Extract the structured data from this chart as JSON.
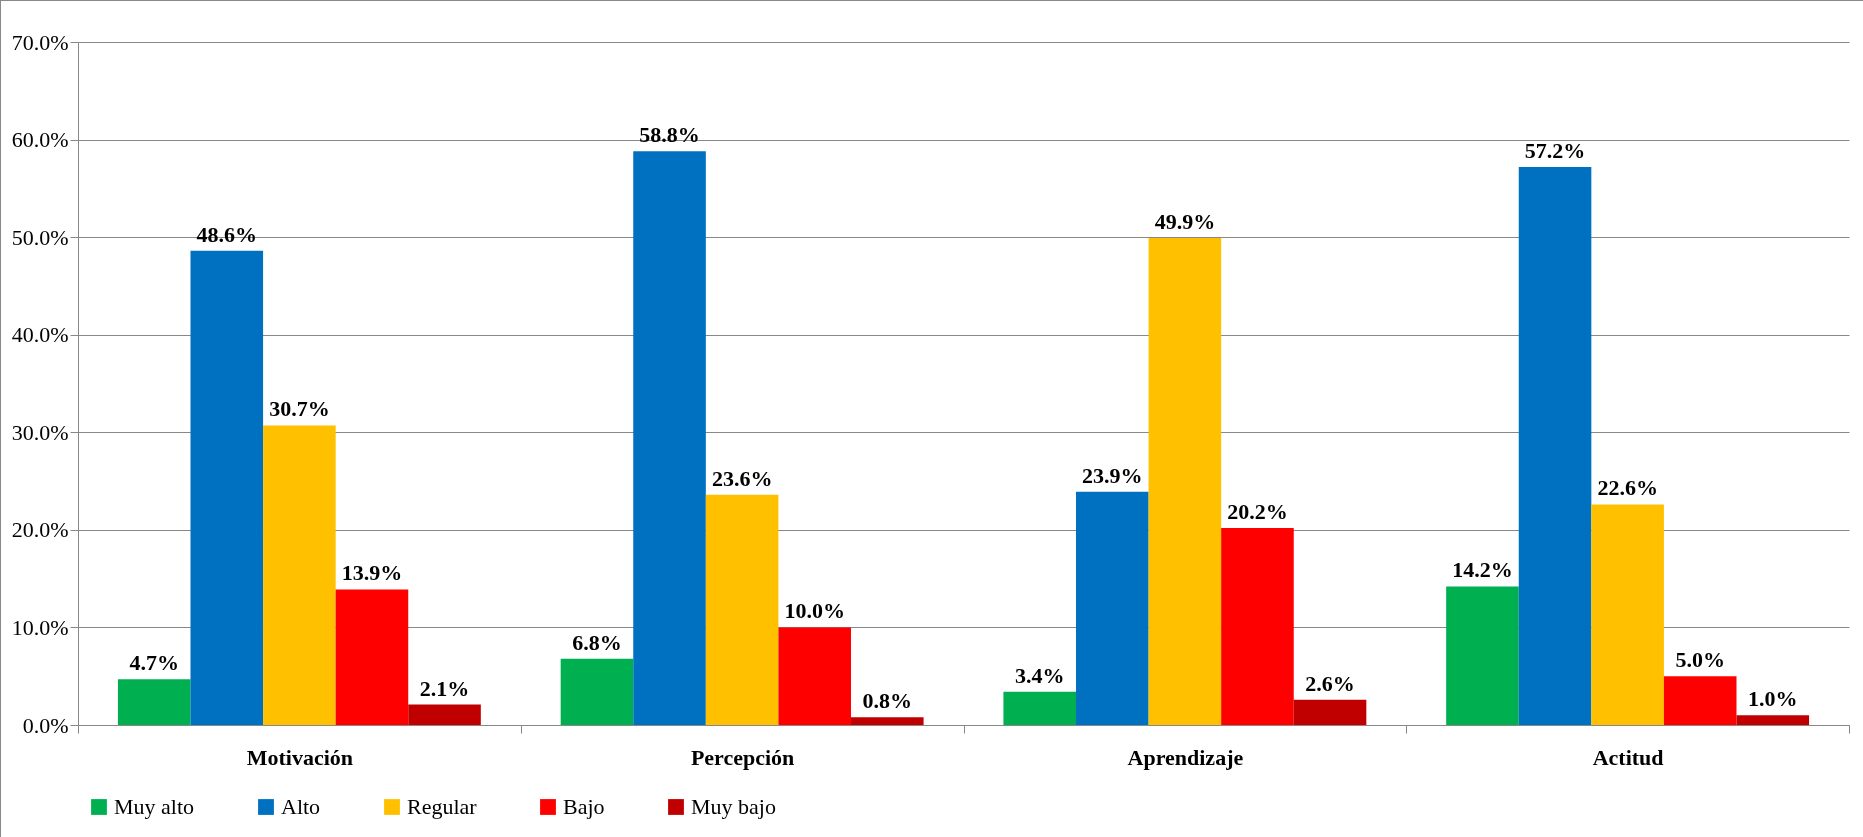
{
  "chart_data": {
    "type": "bar",
    "categories": [
      "Motivación",
      "Percepción",
      "Aprendizaje",
      "Actitud"
    ],
    "series": [
      {
        "name": "Muy alto",
        "color": "#00b050",
        "values": [
          4.7,
          6.8,
          3.4,
          14.2
        ],
        "value_labels": [
          "4.7%",
          "6.8%",
          "3.4%",
          "14.2%"
        ]
      },
      {
        "name": "Alto",
        "color": "#0070c0",
        "values": [
          48.6,
          58.8,
          23.9,
          57.2
        ],
        "value_labels": [
          "48.6%",
          "58.8%",
          "23.9%",
          "57.2%"
        ]
      },
      {
        "name": "Regular",
        "color": "#ffc000",
        "values": [
          30.7,
          23.6,
          49.9,
          22.6
        ],
        "value_labels": [
          "30.7%",
          "23.6%",
          "49.9%",
          "22.6%"
        ]
      },
      {
        "name": "Bajo",
        "color": "#ff0000",
        "values": [
          13.9,
          10.0,
          20.2,
          5.0
        ],
        "value_labels": [
          "13.9%",
          "10.0%",
          "20.2%",
          "5.0%"
        ]
      },
      {
        "name": "Muy bajo",
        "color": "#c00000",
        "values": [
          2.1,
          0.8,
          2.6,
          1.0
        ],
        "value_labels": [
          "2.1%",
          "0.8%",
          "2.6%",
          "1.0%"
        ]
      }
    ],
    "ylim": [
      0,
      70
    ],
    "yticks": [
      {
        "value": 0,
        "label": "0.0%"
      },
      {
        "value": 10,
        "label": "10.0%"
      },
      {
        "value": 20,
        "label": "20.0%"
      },
      {
        "value": 30,
        "label": "30.0%"
      },
      {
        "value": 40,
        "label": "40.0%"
      },
      {
        "value": 50,
        "label": "50.0%"
      },
      {
        "value": 60,
        "label": "60.0%"
      },
      {
        "value": 70,
        "label": "70.0%"
      }
    ],
    "grid": "y",
    "legend": "bottom"
  }
}
